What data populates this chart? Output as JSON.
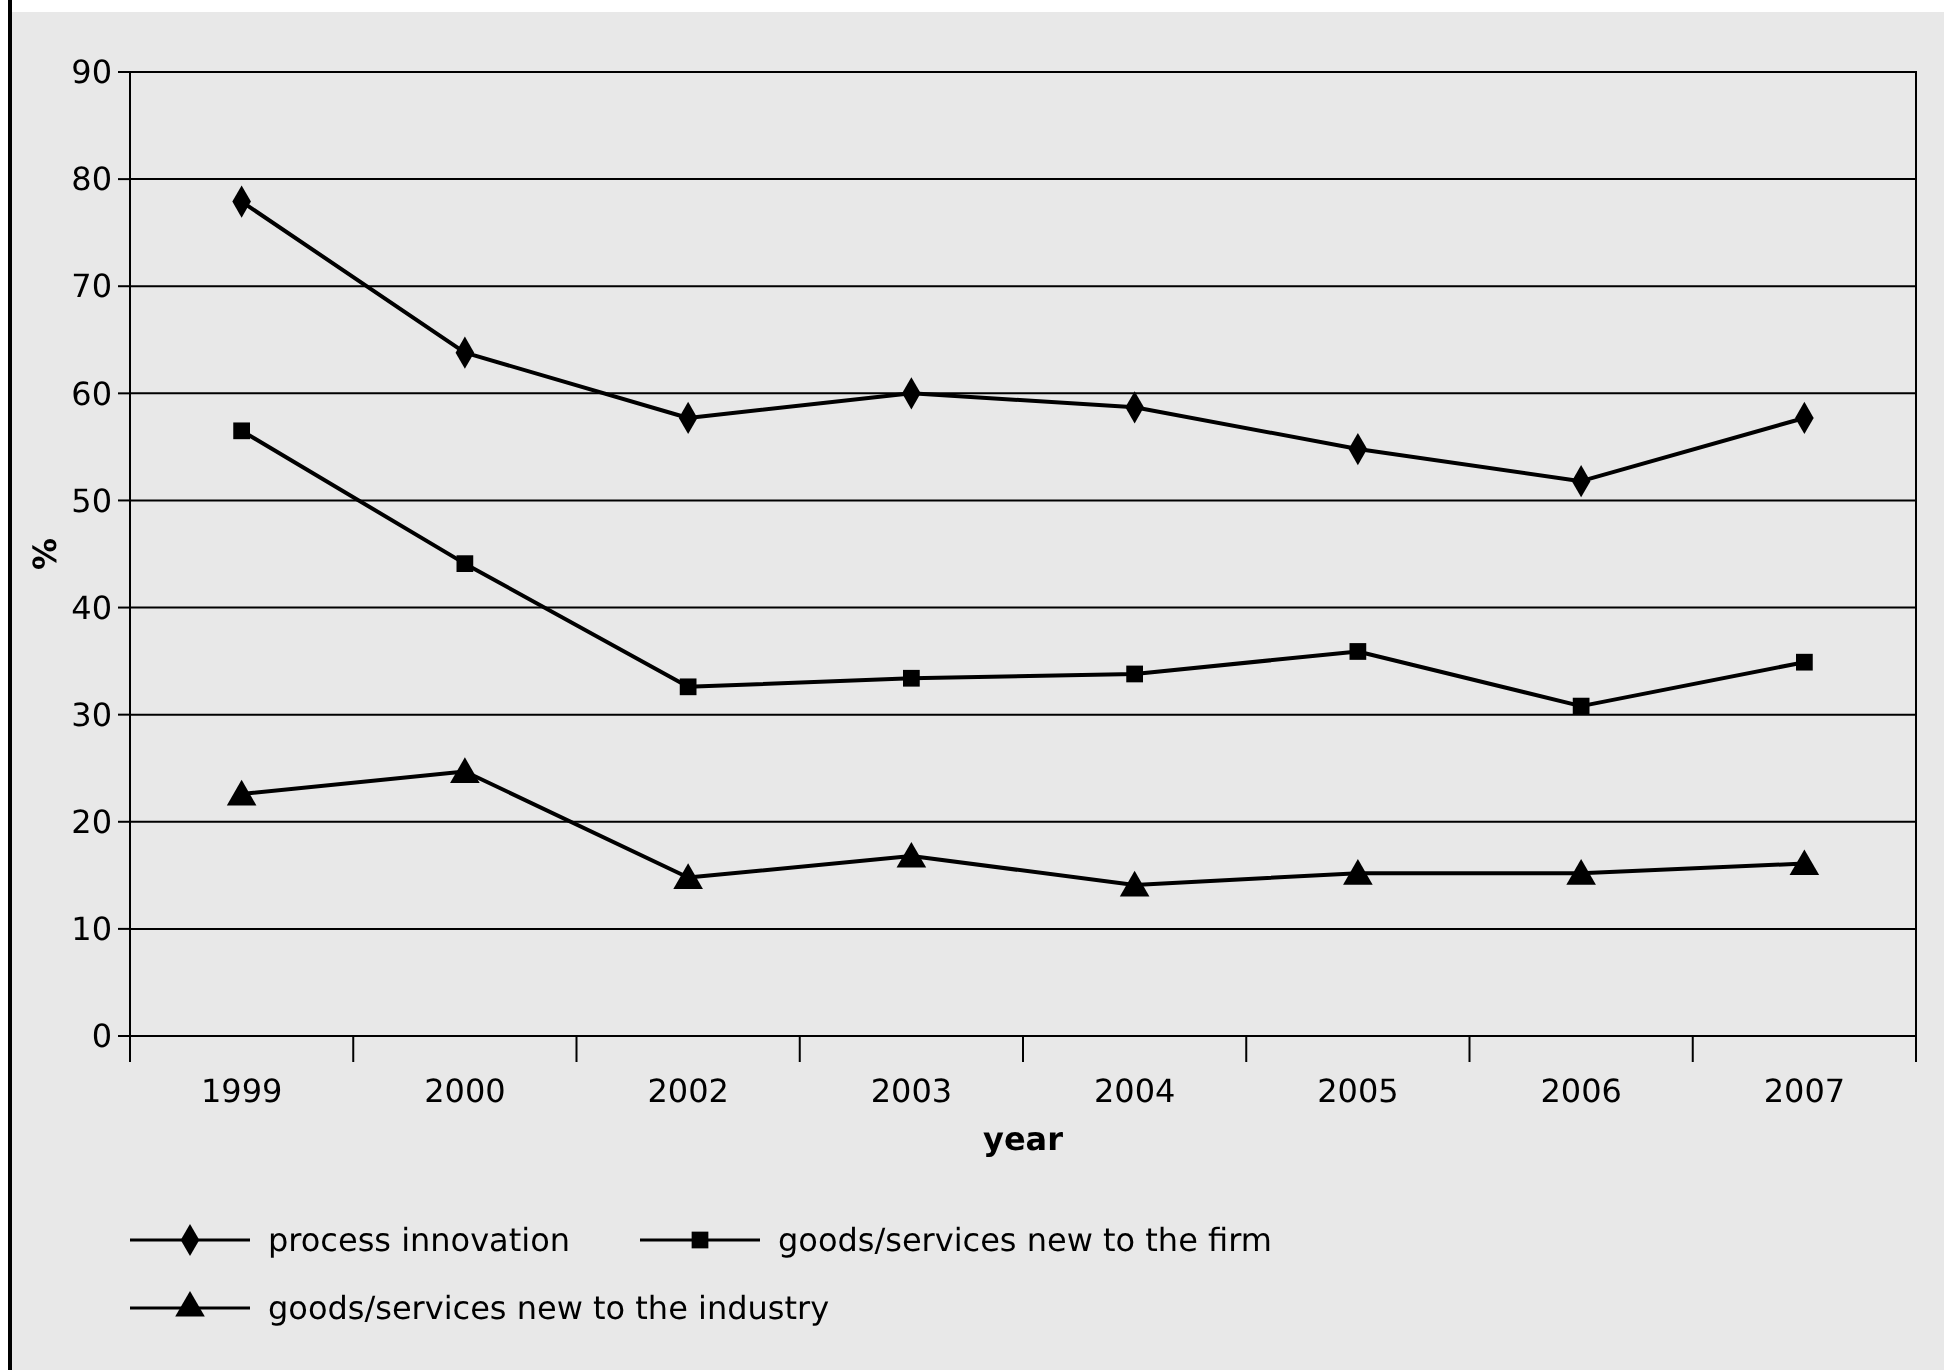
{
  "chart_data": {
    "type": "line",
    "xlabel": "year",
    "ylabel": "%",
    "categories": [
      "1999",
      "2000",
      "2002",
      "2003",
      "2004",
      "2005",
      "2006",
      "2007"
    ],
    "series": [
      {
        "name": "process innovation",
        "color": "#000000",
        "marker": "diamond",
        "values": [
          77.9,
          63.8,
          57.7,
          60.0,
          58.7,
          54.8,
          51.8,
          57.7
        ]
      },
      {
        "name": "goods/services new to the firm",
        "color": "#000000",
        "marker": "square",
        "values": [
          56.5,
          44.1,
          32.6,
          33.4,
          33.8,
          35.9,
          30.8,
          34.9
        ]
      },
      {
        "name": "goods/services new to the industry",
        "color": "#000000",
        "marker": "triangle",
        "values": [
          22.6,
          24.7,
          14.8,
          16.8,
          14.1,
          15.2,
          15.2,
          16.1
        ]
      }
    ],
    "ylim": [
      0,
      90
    ],
    "yticks": [
      0,
      10,
      20,
      30,
      40,
      50,
      60,
      70,
      80,
      90
    ],
    "grid": "y",
    "legend": "bottom",
    "line_style": "solid"
  }
}
